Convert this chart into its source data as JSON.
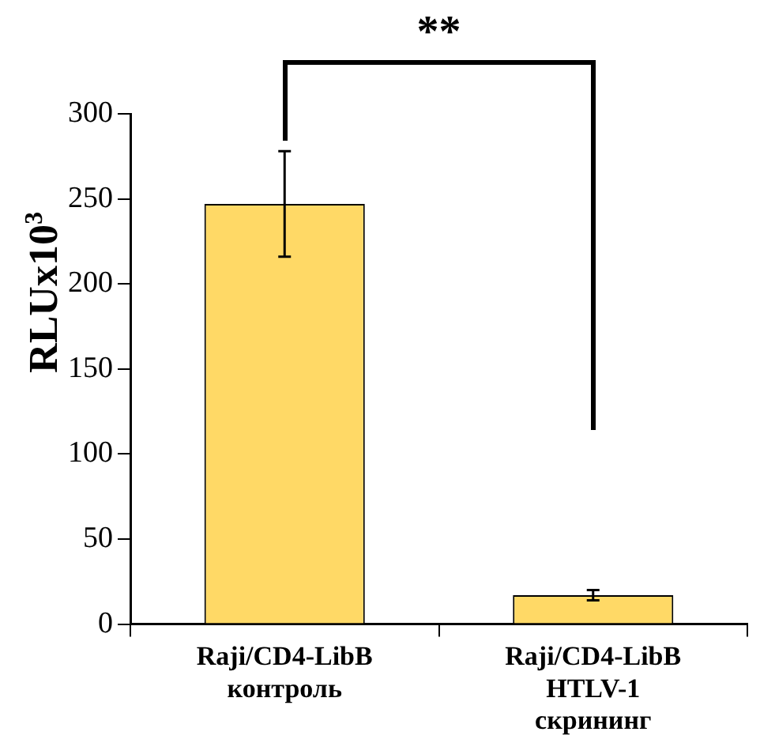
{
  "chart_data": {
    "type": "bar",
    "ylabel": "RLUx10$^{3}$",
    "categories": [
      "Raji/CD4-LibB\nконтроль",
      "Raji/CD4-LibB\nHTLV-1\nскрининг"
    ],
    "values": [
      247,
      17
    ],
    "errors": [
      31,
      3
    ],
    "color": "#ffd966",
    "ylim": [
      0,
      300
    ],
    "yticks": [
      0,
      50,
      100,
      150,
      200,
      250,
      300
    ],
    "grid": false,
    "legend": false,
    "annotations": [
      "**"
    ]
  }
}
